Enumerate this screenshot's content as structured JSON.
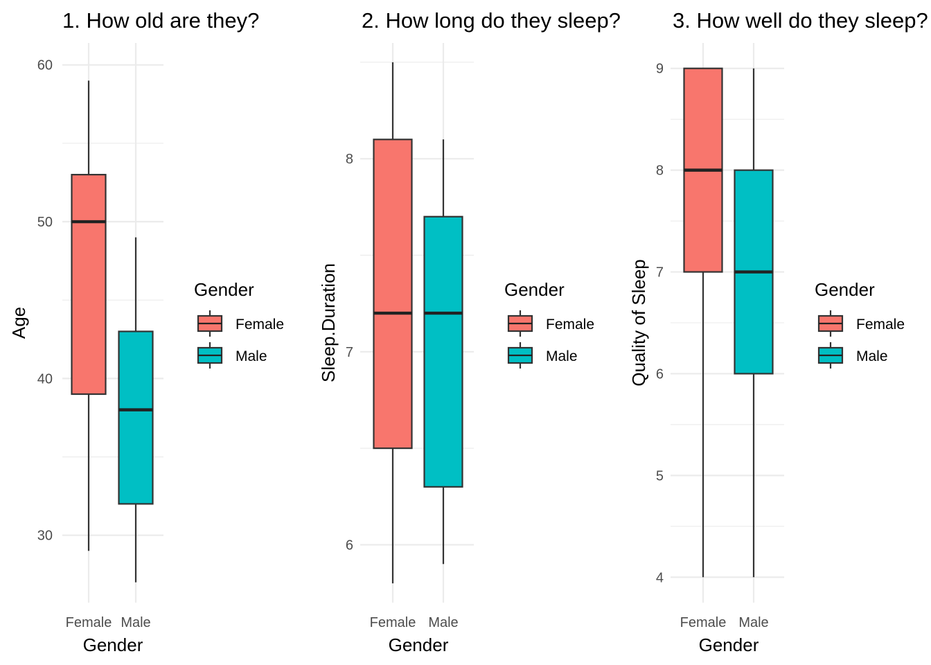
{
  "chart_data": [
    {
      "type": "boxplot",
      "title": "1. How old are they?",
      "xlabel": "Gender",
      "ylabel": "Age",
      "categories": [
        "Female",
        "Male"
      ],
      "ylim": [
        25.7,
        61.4
      ],
      "yticks": [
        30,
        40,
        50,
        60
      ],
      "grid": true,
      "boxes": [
        {
          "category": "Female",
          "min": 29,
          "q1": 39,
          "median": 50,
          "q3": 53,
          "max": 59,
          "color": "#F8766D"
        },
        {
          "category": "Male",
          "min": 27,
          "q1": 32,
          "median": 38,
          "q3": 43,
          "max": 49,
          "color": "#00BFC4"
        }
      ],
      "legend": {
        "title": "Gender",
        "position": "right",
        "items": [
          {
            "label": "Female",
            "color": "#F8766D"
          },
          {
            "label": "Male",
            "color": "#00BFC4"
          }
        ]
      }
    },
    {
      "type": "boxplot",
      "title": "2. How long do they sleep?",
      "xlabel": "Gender",
      "ylabel": "Sleep.Duration",
      "categories": [
        "Female",
        "Male"
      ],
      "ylim": [
        5.7,
        8.6
      ],
      "yticks": [
        6,
        7,
        8
      ],
      "grid": true,
      "boxes": [
        {
          "category": "Female",
          "min": 5.8,
          "q1": 6.5,
          "median": 7.2,
          "q3": 8.1,
          "max": 8.5,
          "color": "#F8766D"
        },
        {
          "category": "Male",
          "min": 5.9,
          "q1": 6.3,
          "median": 7.2,
          "q3": 7.7,
          "max": 8.1,
          "color": "#00BFC4"
        }
      ],
      "legend": {
        "title": "Gender",
        "position": "right",
        "items": [
          {
            "label": "Female",
            "color": "#F8766D"
          },
          {
            "label": "Male",
            "color": "#00BFC4"
          }
        ]
      }
    },
    {
      "type": "boxplot",
      "title": "3. How well do they sleep?",
      "xlabel": "Gender",
      "ylabel": "Quality of Sleep",
      "categories": [
        "Female",
        "Male"
      ],
      "ylim": [
        3.75,
        9.25
      ],
      "yticks": [
        4,
        5,
        6,
        7,
        8,
        9
      ],
      "grid": true,
      "boxes": [
        {
          "category": "Female",
          "min": 4,
          "q1": 7,
          "median": 8,
          "q3": 9,
          "max": 9,
          "color": "#F8766D"
        },
        {
          "category": "Male",
          "min": 4,
          "q1": 6,
          "median": 7,
          "q3": 8,
          "max": 9,
          "color": "#00BFC4"
        }
      ],
      "legend": {
        "title": "Gender",
        "position": "right",
        "items": [
          {
            "label": "Female",
            "color": "#F8766D"
          },
          {
            "label": "Male",
            "color": "#00BFC4"
          }
        ]
      }
    }
  ]
}
